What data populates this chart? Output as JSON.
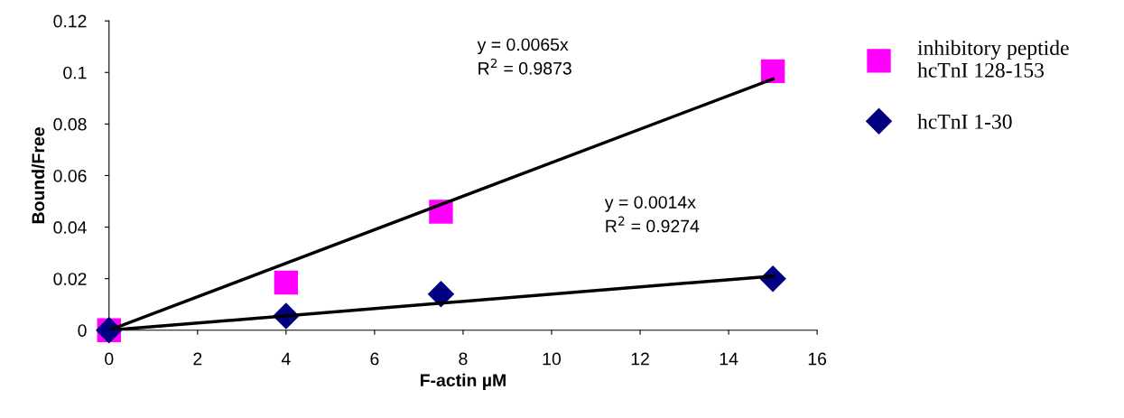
{
  "chart_data": {
    "type": "scatter",
    "xlabel": "F-actin µM",
    "ylabel": "Bound/Free",
    "xlim": [
      0,
      16
    ],
    "xticks": [
      0,
      2,
      4,
      6,
      8,
      10,
      12,
      14,
      16
    ],
    "ylim": [
      0,
      0.12
    ],
    "yticks": [
      0,
      0.02,
      0.04,
      0.06,
      0.08,
      0.1,
      0.12
    ],
    "grid": false,
    "legend": "right",
    "series": [
      {
        "name": "inhibitory peptide\nhcTnI 128-153",
        "color": "#ff00ff",
        "marker": "square",
        "x": [
          0,
          4,
          7.5,
          15
        ],
        "values": [
          0,
          0.0185,
          0.046,
          0.1005
        ]
      },
      {
        "name": "hcTnI 1-30",
        "color": "#000080",
        "marker": "diamond",
        "x": [
          0,
          4,
          7.5,
          15
        ],
        "values": [
          0,
          0.0055,
          0.014,
          0.02
        ]
      },
      {
        "type": "line",
        "color": "#000000",
        "marker": "none",
        "x": [
          0,
          15
        ],
        "values": [
          0,
          0.0975
        ]
      },
      {
        "type": "line",
        "color": "#000000",
        "marker": "none",
        "x": [
          0,
          15
        ],
        "values": [
          0,
          0.021
        ]
      }
    ],
    "annotations": [
      "y = 0.0065x\nR$^{2}$ = 0.9873",
      "y = 0.0014x\nR$^{2}$ = 0.9274"
    ]
  }
}
